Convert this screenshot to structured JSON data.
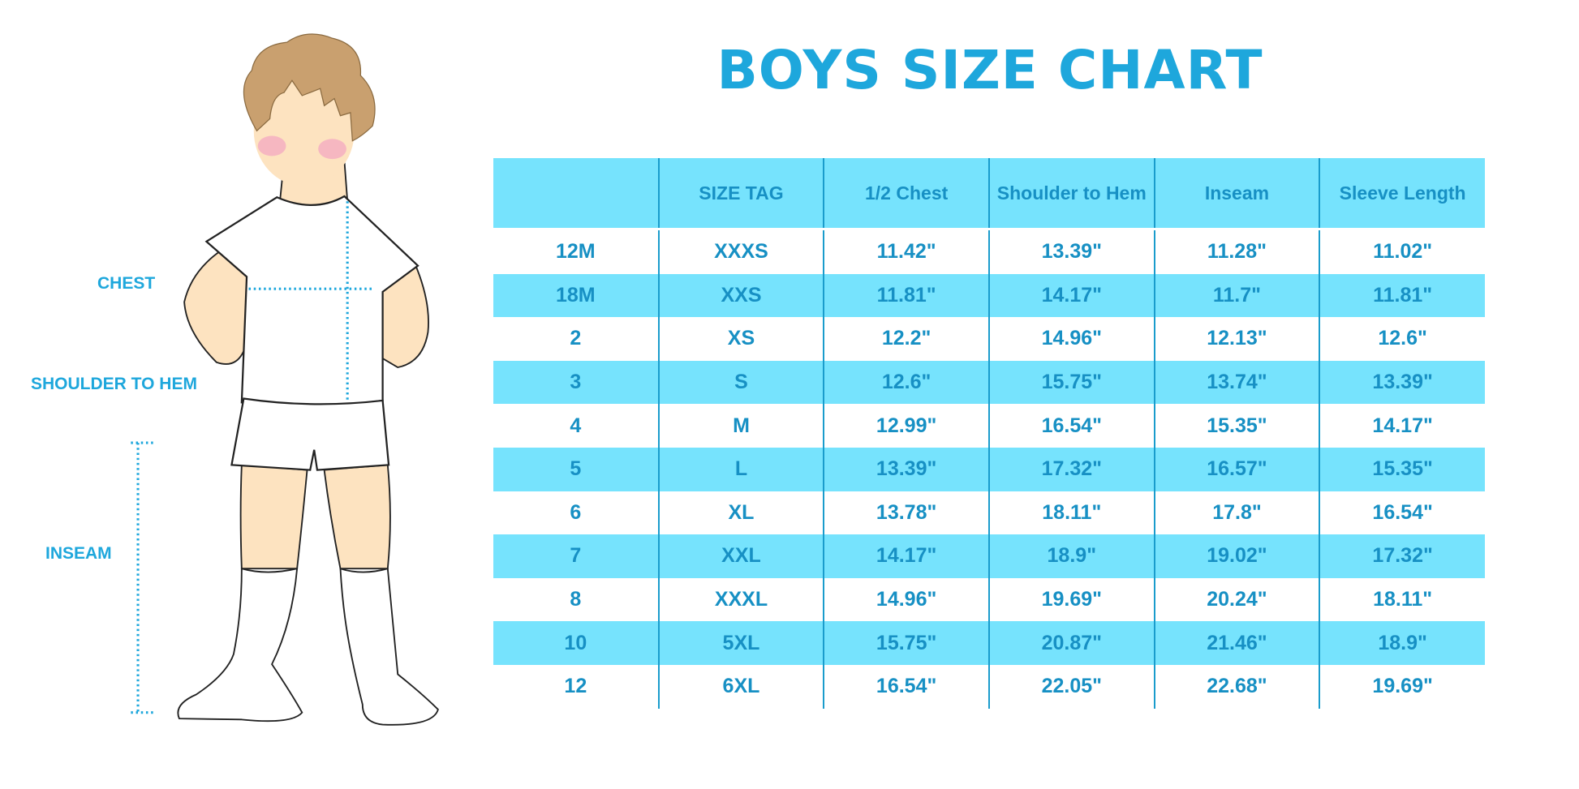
{
  "title": "BOYS SIZE CHART",
  "figure_labels": {
    "chest": "CHEST",
    "shoulder_to_hem": "SHOULDER TO HEM",
    "inseam": "INSEAM"
  },
  "colors": {
    "accent": "#1ea7dc",
    "row_highlight": "#76e3fd",
    "cell_text": "#1790c4"
  },
  "table": {
    "headers": [
      "",
      "SIZE TAG",
      "1/2 Chest",
      "Shoulder to Hem",
      "Inseam",
      "Sleeve Length"
    ],
    "rows": [
      [
        "12M",
        "XXXS",
        "11.42\"",
        "13.39\"",
        "11.28\"",
        "11.02\""
      ],
      [
        "18M",
        "XXS",
        "11.81\"",
        "14.17\"",
        "11.7\"",
        "11.81\""
      ],
      [
        "2",
        "XS",
        "12.2\"",
        "14.96\"",
        "12.13\"",
        "12.6\""
      ],
      [
        "3",
        "S",
        "12.6\"",
        "15.75\"",
        "13.74\"",
        "13.39\""
      ],
      [
        "4",
        "M",
        "12.99\"",
        "16.54\"",
        "15.35\"",
        "14.17\""
      ],
      [
        "5",
        "L",
        "13.39\"",
        "17.32\"",
        "16.57\"",
        "15.35\""
      ],
      [
        "6",
        "XL",
        "13.78\"",
        "18.11\"",
        "17.8\"",
        "16.54\""
      ],
      [
        "7",
        "XXL",
        "14.17\"",
        "18.9\"",
        "19.02\"",
        "17.32\""
      ],
      [
        "8",
        "XXXL",
        "14.96\"",
        "19.69\"",
        "20.24\"",
        "18.11\""
      ],
      [
        "10",
        "5XL",
        "15.75\"",
        "20.87\"",
        "21.46\"",
        "18.9\""
      ],
      [
        "12",
        "6XL",
        "16.54\"",
        "22.05\"",
        "22.68\"",
        "19.69\""
      ]
    ]
  }
}
